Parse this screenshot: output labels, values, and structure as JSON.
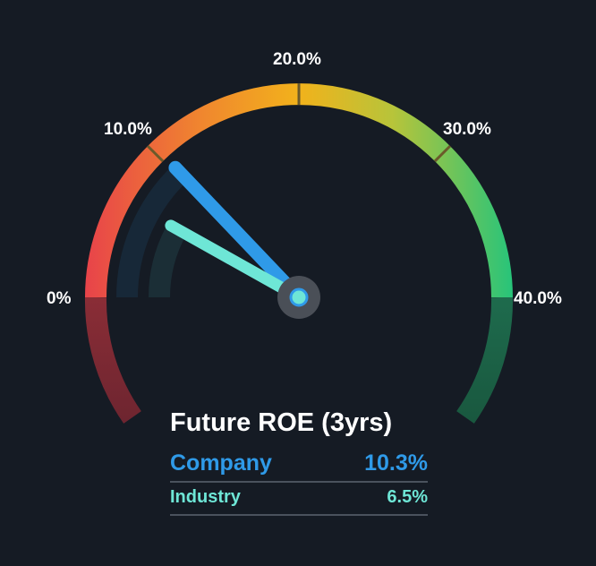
{
  "chart_data": {
    "type": "gauge",
    "title": "Future ROE (3yrs)",
    "range": [
      0,
      40
    ],
    "unit": "%",
    "tick_labels": [
      "0%",
      "10.0%",
      "20.0%",
      "30.0%",
      "40.0%"
    ],
    "tick_values": [
      0,
      10,
      20,
      30,
      40
    ],
    "series": [
      {
        "name": "Company",
        "value": 10.3,
        "label": "10.3%",
        "color": "#2f9ae8"
      },
      {
        "name": "Industry",
        "value": 6.5,
        "label": "6.5%",
        "color": "#6ee6d6"
      }
    ],
    "gradient_colors": [
      "#e8434a",
      "#f0882e",
      "#f2b21b",
      "#b7c43a",
      "#27c47a"
    ],
    "negative_zone_color": "#8a2d36",
    "overflow_zone_color": "#1e6b4d"
  }
}
